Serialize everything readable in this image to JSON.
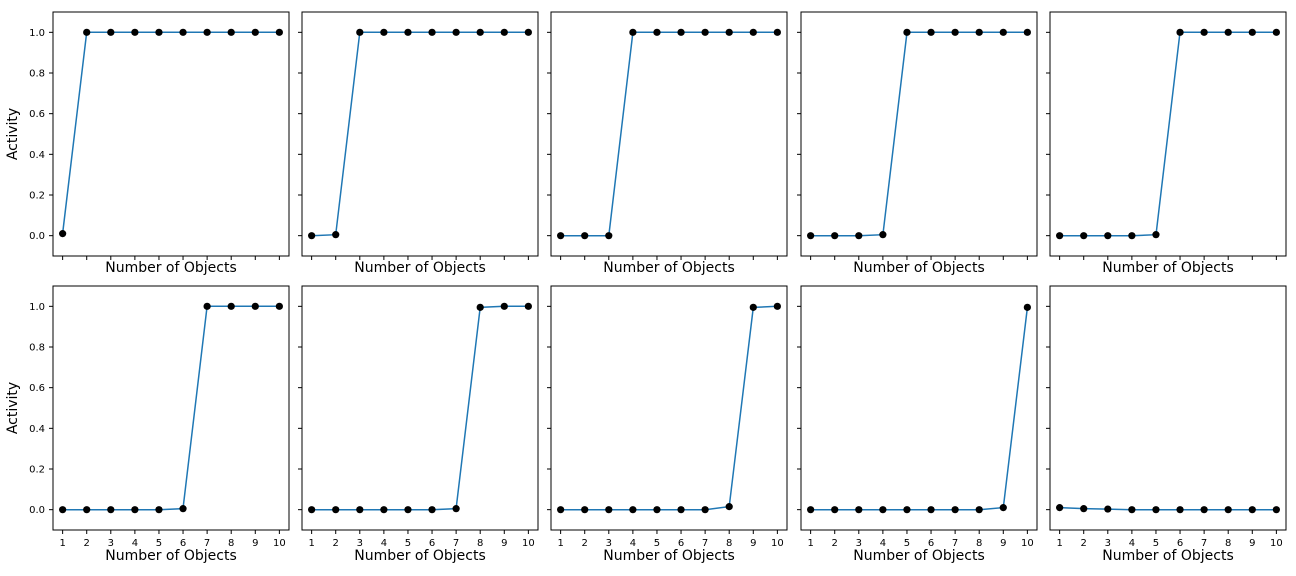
{
  "colors": {
    "line": "#1f77b4",
    "marker": "#000000",
    "frame": "#000000",
    "background": "#ffffff"
  },
  "chart_data": [
    {
      "type": "line",
      "position": "row-1 col-1",
      "xlabel": "Number of Objects",
      "ylabel": "Activity",
      "x": [
        1,
        2,
        3,
        4,
        5,
        6,
        7,
        8,
        9,
        10
      ],
      "values": [
        0.01,
        1,
        1,
        1,
        1,
        1,
        1,
        1,
        1,
        1
      ],
      "xlim": [
        0.6,
        10.4
      ],
      "ylim": [
        -0.1,
        1.1
      ],
      "yticks": [
        "0.0",
        "0.2",
        "0.4",
        "0.6",
        "0.8",
        "1.0"
      ],
      "xticks": [],
      "grid": false
    },
    {
      "type": "line",
      "position": "row-1 col-2",
      "xlabel": "Number of Objects",
      "ylabel": "",
      "x": [
        1,
        2,
        3,
        4,
        5,
        6,
        7,
        8,
        9,
        10
      ],
      "values": [
        0,
        0.005,
        1,
        1,
        1,
        1,
        1,
        1,
        1,
        1
      ],
      "xlim": [
        0.6,
        10.4
      ],
      "ylim": [
        -0.1,
        1.1
      ],
      "yticks": [],
      "xticks": [],
      "grid": false
    },
    {
      "type": "line",
      "position": "row-1 col-3",
      "xlabel": "Number of Objects",
      "ylabel": "",
      "x": [
        1,
        2,
        3,
        4,
        5,
        6,
        7,
        8,
        9,
        10
      ],
      "values": [
        0,
        0,
        0,
        1,
        1,
        1,
        1,
        1,
        1,
        1
      ],
      "xlim": [
        0.6,
        10.4
      ],
      "ylim": [
        -0.1,
        1.1
      ],
      "yticks": [],
      "xticks": [],
      "grid": false
    },
    {
      "type": "line",
      "position": "row-1 col-4",
      "xlabel": "Number of Objects",
      "ylabel": "",
      "x": [
        1,
        2,
        3,
        4,
        5,
        6,
        7,
        8,
        9,
        10
      ],
      "values": [
        0,
        0,
        0,
        0.005,
        1,
        1,
        1,
        1,
        1,
        1
      ],
      "xlim": [
        0.6,
        10.4
      ],
      "ylim": [
        -0.1,
        1.1
      ],
      "yticks": [],
      "xticks": [],
      "grid": false
    },
    {
      "type": "line",
      "position": "row-1 col-5",
      "xlabel": "Number of Objects",
      "ylabel": "",
      "x": [
        1,
        2,
        3,
        4,
        5,
        6,
        7,
        8,
        9,
        10
      ],
      "values": [
        0,
        0,
        0,
        0,
        0.005,
        1,
        1,
        1,
        1,
        1
      ],
      "xlim": [
        0.6,
        10.4
      ],
      "ylim": [
        -0.1,
        1.1
      ],
      "yticks": [],
      "xticks": [],
      "grid": false
    },
    {
      "type": "line",
      "position": "row-2 col-1",
      "xlabel": "Number of Objects",
      "ylabel": "Activity",
      "x": [
        1,
        2,
        3,
        4,
        5,
        6,
        7,
        8,
        9,
        10
      ],
      "values": [
        0,
        0,
        0,
        0,
        0,
        0.005,
        1,
        1,
        1,
        1
      ],
      "xlim": [
        0.6,
        10.4
      ],
      "ylim": [
        -0.1,
        1.1
      ],
      "yticks": [
        "0.0",
        "0.2",
        "0.4",
        "0.6",
        "0.8",
        "1.0"
      ],
      "xticks": [
        "1",
        "2",
        "3",
        "4",
        "5",
        "6",
        "7",
        "8",
        "9",
        "10"
      ],
      "grid": false
    },
    {
      "type": "line",
      "position": "row-2 col-2",
      "xlabel": "Number of Objects",
      "ylabel": "",
      "x": [
        1,
        2,
        3,
        4,
        5,
        6,
        7,
        8,
        9,
        10
      ],
      "values": [
        0,
        0,
        0,
        0,
        0,
        0,
        0.005,
        0.995,
        1,
        1
      ],
      "xlim": [
        0.6,
        10.4
      ],
      "ylim": [
        -0.1,
        1.1
      ],
      "yticks": [],
      "xticks": [
        "1",
        "2",
        "3",
        "4",
        "5",
        "6",
        "7",
        "8",
        "9",
        "10"
      ],
      "grid": false
    },
    {
      "type": "line",
      "position": "row-2 col-3",
      "xlabel": "Number of Objects",
      "ylabel": "",
      "x": [
        1,
        2,
        3,
        4,
        5,
        6,
        7,
        8,
        9,
        10
      ],
      "values": [
        0,
        0,
        0,
        0,
        0,
        0,
        0,
        0.015,
        0.995,
        1
      ],
      "xlim": [
        0.6,
        10.4
      ],
      "ylim": [
        -0.1,
        1.1
      ],
      "yticks": [],
      "xticks": [
        "1",
        "2",
        "3",
        "4",
        "5",
        "6",
        "7",
        "8",
        "9",
        "10"
      ],
      "grid": false
    },
    {
      "type": "line",
      "position": "row-2 col-4",
      "xlabel": "Number of Objects",
      "ylabel": "",
      "x": [
        1,
        2,
        3,
        4,
        5,
        6,
        7,
        8,
        9,
        10
      ],
      "values": [
        0,
        0,
        0,
        0,
        0,
        0,
        0,
        0,
        0.01,
        0.995
      ],
      "xlim": [
        0.6,
        10.4
      ],
      "ylim": [
        -0.1,
        1.1
      ],
      "yticks": [],
      "xticks": [
        "1",
        "2",
        "3",
        "4",
        "5",
        "6",
        "7",
        "8",
        "9",
        "10"
      ],
      "grid": false
    },
    {
      "type": "line",
      "position": "row-2 col-5",
      "xlabel": "Number of Objects",
      "ylabel": "",
      "x": [
        1,
        2,
        3,
        4,
        5,
        6,
        7,
        8,
        9,
        10
      ],
      "values": [
        0.01,
        0.005,
        0.003,
        0,
        0,
        0,
        0,
        0,
        0,
        0
      ],
      "xlim": [
        0.6,
        10.4
      ],
      "ylim": [
        -0.1,
        1.1
      ],
      "yticks": [],
      "xticks": [
        "1",
        "2",
        "3",
        "4",
        "5",
        "6",
        "7",
        "8",
        "9",
        "10"
      ],
      "grid": false
    }
  ]
}
